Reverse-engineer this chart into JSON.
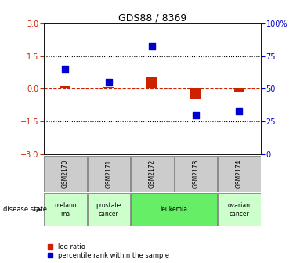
{
  "title": "GDS88 / 8369",
  "samples": [
    "GSM2170",
    "GSM2171",
    "GSM2172",
    "GSM2173",
    "GSM2174"
  ],
  "log_ratio": [
    0.12,
    0.08,
    0.55,
    -0.45,
    -0.12
  ],
  "percentile_rank": [
    65,
    55,
    83,
    30,
    33
  ],
  "ylim_left": [
    -3,
    3
  ],
  "yticks_left": [
    -3,
    -1.5,
    0,
    1.5,
    3
  ],
  "yticks_right": [
    0,
    25,
    50,
    75,
    100
  ],
  "hlines": [
    1.5,
    -1.5
  ],
  "disease_states": [
    {
      "label": "melano\nma",
      "samples": [
        "GSM2170"
      ],
      "color": "#ccffcc"
    },
    {
      "label": "prostate\ncancer",
      "samples": [
        "GSM2171"
      ],
      "color": "#ccffcc"
    },
    {
      "label": "leukemia",
      "samples": [
        "GSM2172",
        "GSM2173"
      ],
      "color": "#66ee66"
    },
    {
      "label": "ovarian\ncancer",
      "samples": [
        "GSM2174"
      ],
      "color": "#ccffcc"
    }
  ],
  "log_ratio_color": "#cc2200",
  "percentile_color": "#0000cc",
  "zero_line_color": "#cc2200",
  "dotted_line_color": "#000000",
  "bg_color": "#ffffff",
  "disease_label": "disease state",
  "legend_items": [
    "log ratio",
    "percentile rank within the sample"
  ]
}
